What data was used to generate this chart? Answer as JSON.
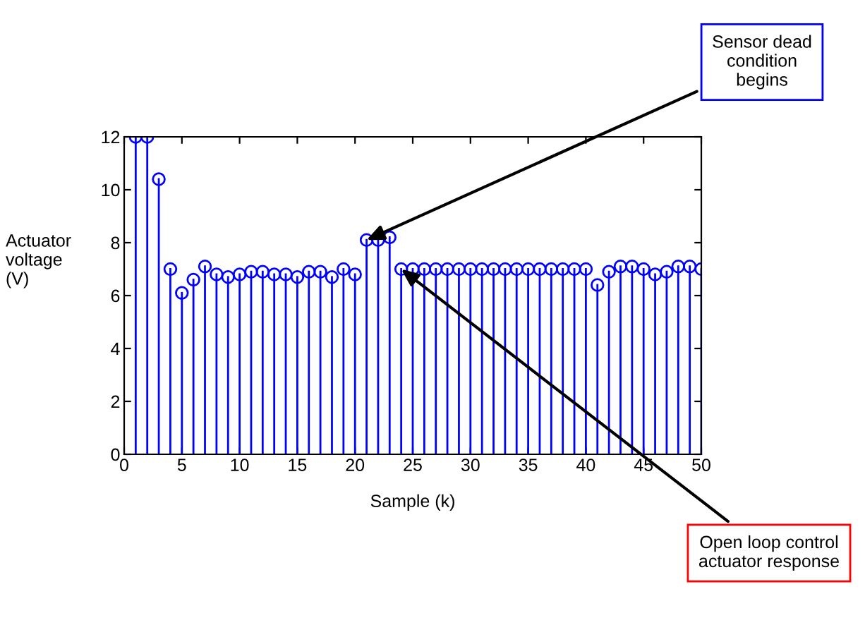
{
  "chart_data": {
    "type": "lollipop",
    "xlabel": "Sample (k)",
    "ylabel": "Actuator\nvoltage\n(V)",
    "x": [
      1,
      2,
      3,
      4,
      5,
      6,
      7,
      8,
      9,
      10,
      11,
      12,
      13,
      14,
      15,
      16,
      17,
      18,
      19,
      20,
      21,
      22,
      23,
      24,
      25,
      26,
      27,
      28,
      29,
      30,
      31,
      32,
      33,
      34,
      35,
      36,
      37,
      38,
      39,
      40,
      41,
      42,
      43,
      44,
      45,
      46,
      47,
      48,
      49,
      50
    ],
    "series": [
      {
        "color": "#0000ff",
        "values": [
          12,
          12,
          10.4,
          7.0,
          6.1,
          6.6,
          7.1,
          6.8,
          6.7,
          6.8,
          6.9,
          6.9,
          6.8,
          6.8,
          6.7,
          6.9,
          6.9,
          6.7,
          7.0,
          6.8,
          8.1,
          8.1,
          8.2,
          7.0,
          7.0,
          7.0,
          7.0,
          7.0,
          7.0,
          7.0,
          7.0,
          7.0,
          7.0,
          7.0,
          7.0,
          7.0,
          7.0,
          7.0,
          7.0,
          7.0,
          6.4,
          6.9,
          7.1,
          7.1,
          7.0,
          6.8,
          6.9,
          7.1,
          7.1,
          7.0
        ]
      }
    ],
    "marker": "circle",
    "grid": false,
    "xlim": [
      0,
      50
    ],
    "ylim": [
      0,
      12
    ],
    "xticks": [
      0,
      5,
      10,
      15,
      20,
      25,
      30,
      35,
      40,
      45,
      50
    ],
    "yticks": [
      0,
      2,
      4,
      6,
      8,
      10,
      12
    ],
    "annotations": [
      {
        "text": "Sensor dead\ncondition\nbegins",
        "x": 21,
        "y": 8.1
      },
      {
        "text": "Open loop control\nactuator response",
        "x": 24,
        "y": 7.0
      }
    ]
  }
}
